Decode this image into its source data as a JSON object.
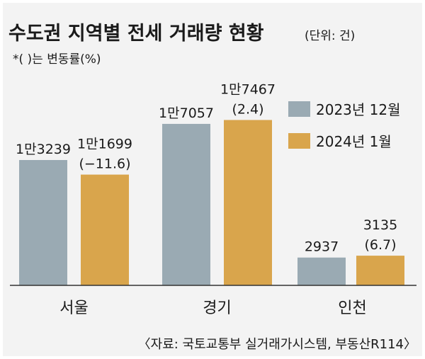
{
  "chart_data": {
    "type": "bar",
    "title": "수도권 지역별 전세 거래량 현황",
    "unit": "(단위: 건)",
    "note": "*(    )는 변동률(%)",
    "source": "〈자료: 국토교통부 실거래가시스템, 부동산R114〉",
    "categories": [
      "서울",
      "경기",
      "인천"
    ],
    "series": [
      {
        "name": "2023년 12월",
        "color": "#9aaab3",
        "values": [
          13239,
          17057,
          2937
        ],
        "labels": [
          "1만3239",
          "1만7057",
          "2937"
        ],
        "changes": [
          null,
          null,
          null
        ]
      },
      {
        "name": "2024년 1월",
        "color": "#d9a54c",
        "values": [
          11699,
          17467,
          3135
        ],
        "labels": [
          "1만1699",
          "1만7467",
          "3135"
        ],
        "changes": [
          "(−11.6)",
          "(2.4)",
          "(6.7)"
        ]
      }
    ],
    "ylim": [
      0,
      18000
    ],
    "legend": "top-right"
  }
}
